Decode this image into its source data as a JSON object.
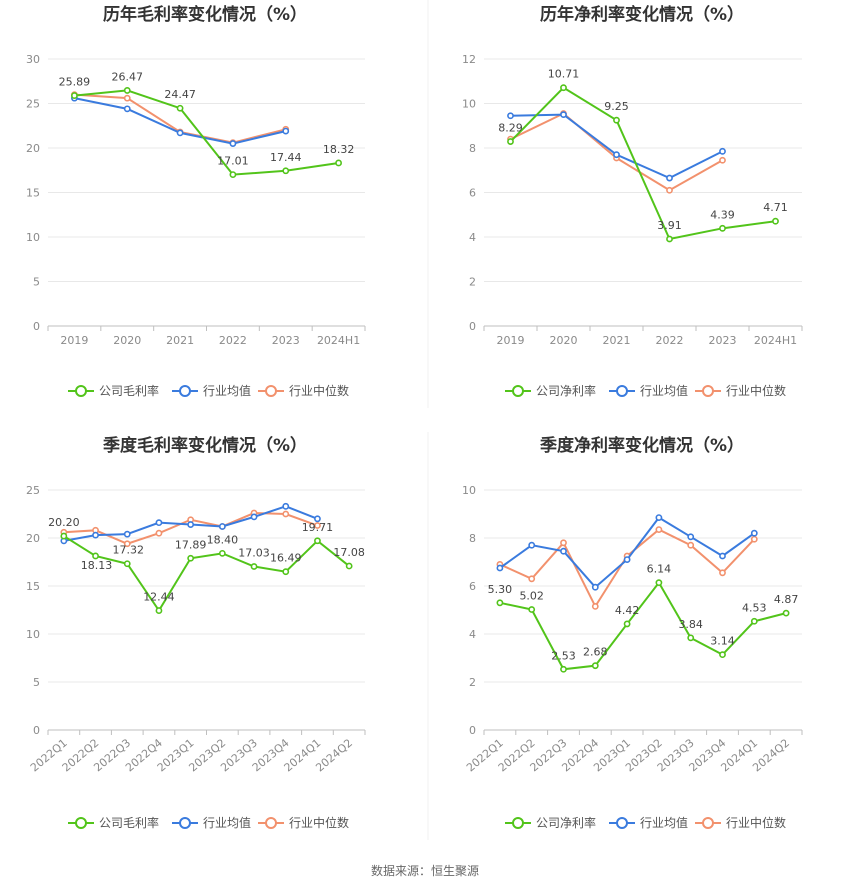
{
  "colors": {
    "company": "#52c41a",
    "avg": "#3a7bde",
    "median": "#f2916d",
    "grid": "#e8e8e8",
    "axis": "#bfbfbf"
  },
  "legend_labels": {
    "industry_avg": "行业均值",
    "industry_median": "行业中位数"
  },
  "source_text": "数据来源：恒生聚源",
  "chart_data": [
    {
      "type": "line",
      "title": "历年毛利率变化情况（%）",
      "categories": [
        "2019",
        "2020",
        "2021",
        "2022",
        "2023",
        "2024H1"
      ],
      "ylim": [
        0,
        30
      ],
      "yticks": [
        "0",
        "5",
        "10",
        "15",
        "20",
        "25",
        "30"
      ],
      "grid": true,
      "legend": "bottom",
      "series": [
        {
          "name": "公司毛利率",
          "values": [
            25.89,
            26.47,
            24.47,
            17.01,
            17.44,
            18.32
          ],
          "labels": [
            "25.89",
            "26.47",
            "24.47",
            "17.01",
            "17.44",
            "18.32"
          ]
        },
        {
          "name": "行业均值",
          "values": [
            25.6,
            24.4,
            21.7,
            20.5,
            21.9,
            null
          ]
        },
        {
          "name": "行业中位数",
          "values": [
            26.0,
            25.6,
            21.8,
            20.6,
            22.1,
            null
          ]
        }
      ]
    },
    {
      "type": "line",
      "title": "历年净利率变化情况（%）",
      "categories": [
        "2019",
        "2020",
        "2021",
        "2022",
        "2023",
        "2024H1"
      ],
      "ylim": [
        0,
        12
      ],
      "yticks": [
        "0",
        "2",
        "4",
        "6",
        "8",
        "10",
        "12"
      ],
      "grid": true,
      "legend": "bottom",
      "series": [
        {
          "name": "公司净利率",
          "values": [
            8.29,
            10.71,
            9.25,
            3.91,
            4.39,
            4.71
          ],
          "labels": [
            "8.29",
            "10.71",
            "9.25",
            "3.91",
            "4.39",
            "4.71"
          ]
        },
        {
          "name": "行业均值",
          "values": [
            9.45,
            9.5,
            7.7,
            6.65,
            7.85,
            null
          ]
        },
        {
          "name": "行业中位数",
          "values": [
            8.4,
            9.55,
            7.55,
            6.1,
            7.45,
            null
          ]
        }
      ]
    },
    {
      "type": "line",
      "title": "季度毛利率变化情况（%）",
      "categories": [
        "2022Q1",
        "2022Q2",
        "2022Q3",
        "2022Q4",
        "2023Q1",
        "2023Q2",
        "2023Q3",
        "2023Q4",
        "2024Q1",
        "2024Q2"
      ],
      "ylim": [
        0,
        25
      ],
      "yticks": [
        "0",
        "5",
        "10",
        "15",
        "20",
        "25"
      ],
      "grid": true,
      "legend": "bottom",
      "series": [
        {
          "name": "公司毛利率",
          "values": [
            20.2,
            18.13,
            17.32,
            12.44,
            17.89,
            18.4,
            17.03,
            16.49,
            19.71,
            17.08
          ],
          "labels": [
            "20.20",
            "18.13",
            "17.32",
            "12.44",
            "17.89",
            "18.40",
            "17.03",
            "16.49",
            "19.71",
            "17.08"
          ]
        },
        {
          "name": "行业均值",
          "values": [
            19.7,
            20.3,
            20.4,
            21.6,
            21.4,
            21.2,
            22.2,
            23.3,
            22.0,
            null
          ]
        },
        {
          "name": "行业中位数",
          "values": [
            20.6,
            20.8,
            19.4,
            20.5,
            21.9,
            21.2,
            22.6,
            22.5,
            21.3,
            null
          ]
        }
      ]
    },
    {
      "type": "line",
      "title": "季度净利率变化情况（%）",
      "categories": [
        "2022Q1",
        "2022Q2",
        "2022Q3",
        "2022Q4",
        "2023Q1",
        "2023Q2",
        "2023Q3",
        "2023Q4",
        "2024Q1",
        "2024Q2"
      ],
      "ylim": [
        0,
        10
      ],
      "yticks": [
        "0",
        "2",
        "4",
        "6",
        "8",
        "10"
      ],
      "grid": true,
      "legend": "bottom",
      "series": [
        {
          "name": "公司净利率",
          "values": [
            5.3,
            5.02,
            2.53,
            2.68,
            4.42,
            6.14,
            3.84,
            3.14,
            4.53,
            4.87
          ],
          "labels": [
            "5.30",
            "5.02",
            "2.53",
            "2.68",
            "4.42",
            "6.14",
            "3.84",
            "3.14",
            "4.53",
            "4.87"
          ]
        },
        {
          "name": "行业均值",
          "values": [
            6.75,
            7.7,
            7.45,
            5.95,
            7.1,
            8.85,
            8.05,
            7.25,
            8.2,
            null
          ]
        },
        {
          "name": "行业中位数",
          "values": [
            6.9,
            6.3,
            7.8,
            5.15,
            7.25,
            8.35,
            7.7,
            6.55,
            7.95,
            null
          ]
        }
      ]
    }
  ]
}
